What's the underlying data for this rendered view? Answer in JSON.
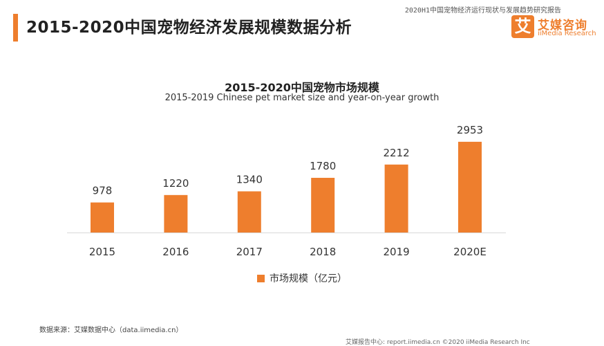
{
  "header": {
    "report_tag": "2020H1中国宠物经济运行现状与发展趋势研究报告",
    "page_title": "2015-2020中国宠物经济发展规模数据分析"
  },
  "logo": {
    "mark": "艾",
    "name_cn": "艾媒咨询",
    "name_en": "iiMedia Research"
  },
  "chart_data": {
    "type": "bar",
    "title": "2015-2020中国宠物市场规模",
    "subtitle": "2015-2019 Chinese pet market size and year-on-year growth",
    "categories": [
      "2015",
      "2016",
      "2017",
      "2018",
      "2019",
      "2020E"
    ],
    "series": [
      {
        "name": "市场规模（亿元）",
        "values": [
          978,
          1220,
          1340,
          1780,
          2212,
          2953
        ]
      }
    ],
    "show_data_labels": true,
    "legend_position": "bottom",
    "grid": false,
    "color": "#ee7e2d"
  },
  "footer": {
    "source": "数据来源：艾媒数据中心（data.iimedia.cn）",
    "strip": "艾媒报告中心: report.iimedia.cn    ©2020  iiMedia Research Inc"
  }
}
